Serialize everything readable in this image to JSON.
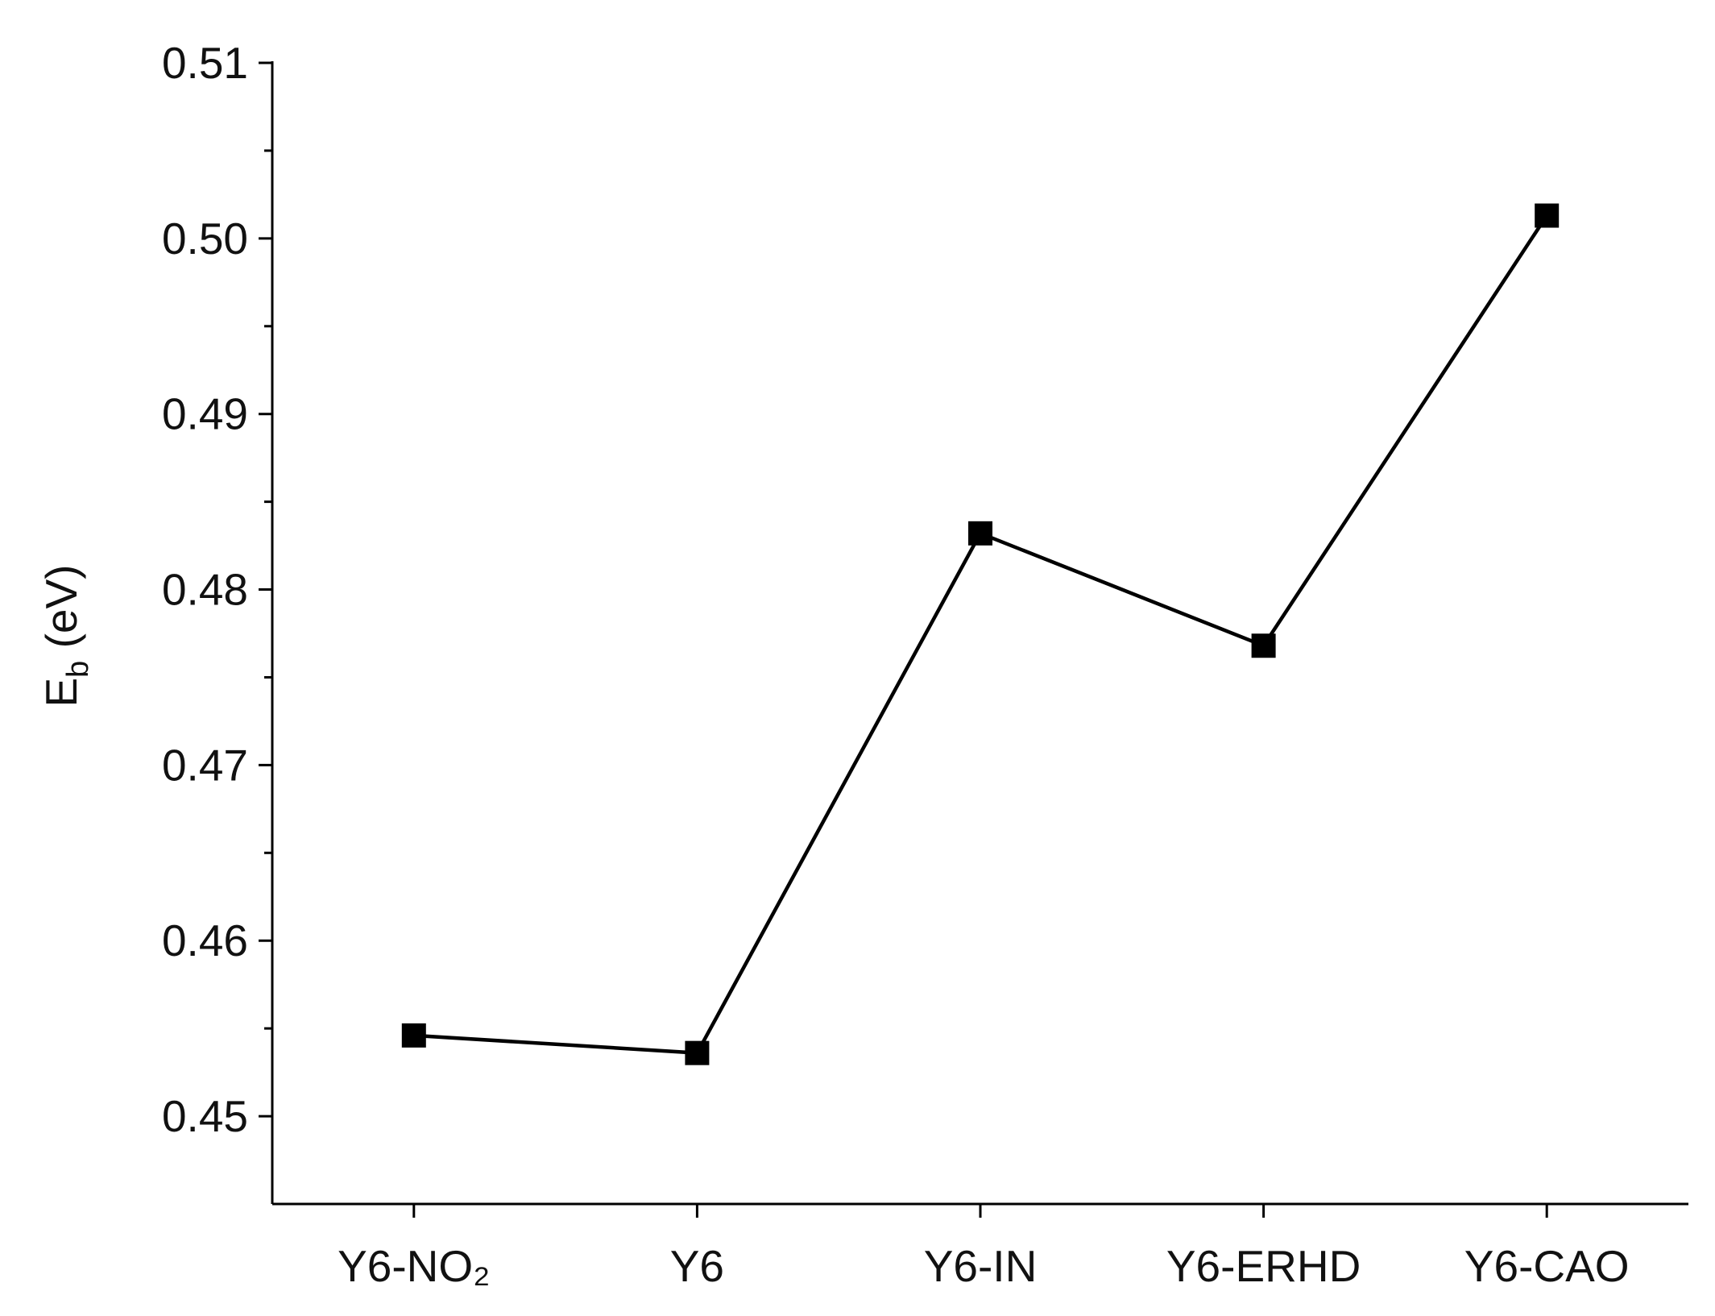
{
  "chart_data": {
    "type": "line",
    "y_label": {
      "main": "E",
      "sub": "b",
      "unit": " (eV)"
    },
    "categories": [
      "Y6-NO₂",
      "Y6",
      "Y6-IN",
      "Y6-ERHD",
      "Y6-CAO"
    ],
    "values": [
      0.4546,
      0.4536,
      0.4832,
      0.4768,
      0.5013
    ],
    "color": "#000000",
    "marker": "square",
    "ylim": [
      0.445,
      0.51
    ],
    "yticks": [
      {
        "value": 0.45,
        "label": "0.45"
      },
      {
        "value": 0.46,
        "label": "0.46"
      },
      {
        "value": 0.47,
        "label": "0.47"
      },
      {
        "value": 0.48,
        "label": "0.48"
      },
      {
        "value": 0.49,
        "label": "0.49"
      },
      {
        "value": 0.5,
        "label": "0.50"
      },
      {
        "value": 0.51,
        "label": "0.51"
      }
    ],
    "yminorticks": [
      0.455,
      0.465,
      0.475,
      0.485,
      0.495,
      0.505
    ],
    "grid": false
  }
}
